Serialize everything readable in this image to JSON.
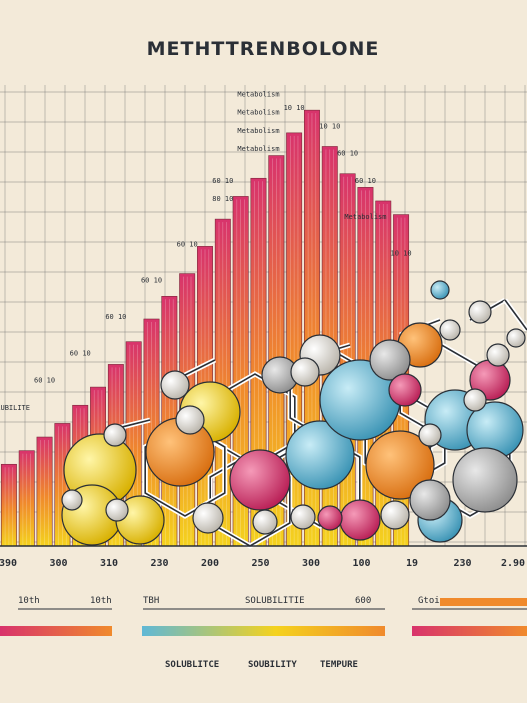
{
  "colors": {
    "background": "#f3ead9",
    "ink": "#2a2f36",
    "magenta": "#d8336c",
    "orange": "#f08a2c",
    "yellow": "#f4d21e",
    "blue": "#5fb8d6",
    "grid": "#6b6b6b"
  },
  "chart_data": {
    "type": "bar",
    "title": "METHTTRENBOLONE",
    "xlabel": "",
    "ylabel": "",
    "grid": true,
    "ylim": [
      0,
      100
    ],
    "x_tick_labels": [
      "390",
      "300",
      "310",
      "230",
      "200",
      "250",
      "300",
      "100",
      "19",
      "230",
      "2.90"
    ],
    "values": [
      18,
      21,
      24,
      27,
      31,
      35,
      40,
      45,
      50,
      55,
      60,
      66,
      72,
      77,
      81,
      86,
      91,
      96,
      88,
      82,
      79,
      76,
      73
    ],
    "annotations": [
      {
        "text": "Metabolism",
        "x_index": 14,
        "y": 99
      },
      {
        "text": "Metabolism",
        "x_index": 14,
        "y": 95
      },
      {
        "text": "Metabolism",
        "x_index": 14,
        "y": 91
      },
      {
        "text": "Metabolism",
        "x_index": 14,
        "y": 87
      },
      {
        "text": "SOLUBILITE",
        "x_index": 0,
        "y": 30
      },
      {
        "text": "60 10",
        "x_index": 2,
        "y": 36
      },
      {
        "text": "60 10",
        "x_index": 4,
        "y": 42
      },
      {
        "text": "60 10",
        "x_index": 6,
        "y": 50
      },
      {
        "text": "60 10",
        "x_index": 8,
        "y": 58
      },
      {
        "text": "60 10",
        "x_index": 10,
        "y": 66
      },
      {
        "text": "80 10",
        "x_index": 12,
        "y": 76
      },
      {
        "text": "60 10",
        "x_index": 12,
        "y": 80
      },
      {
        "text": "10 10",
        "x_index": 16,
        "y": 96
      },
      {
        "text": "10 10",
        "x_index": 18,
        "y": 92
      },
      {
        "text": "60 10",
        "x_index": 19,
        "y": 86
      },
      {
        "text": "60 10",
        "x_index": 20,
        "y": 80
      },
      {
        "text": "Metabolism",
        "x_index": 20,
        "y": 72
      },
      {
        "text": "10 10",
        "x_index": 22,
        "y": 64
      }
    ]
  },
  "legend": {
    "items": [
      {
        "label_left": "10th",
        "label_right": "10th",
        "from": "#d8336c",
        "to": "#f08a2c"
      },
      {
        "label_left": "TBH",
        "label_mid": "SOLUBILITIE",
        "label_right": "600",
        "from": "#5fb8d6",
        "to": "#f08a2c"
      },
      {
        "label_left": "Gtoin",
        "label_right": "",
        "from": "#d8336c",
        "to": "#f08a2c"
      }
    ]
  },
  "footer": {
    "label_1": "SOLUBLITCE",
    "label_2": "SOUBILITY",
    "label_3": "TEMPURE"
  }
}
